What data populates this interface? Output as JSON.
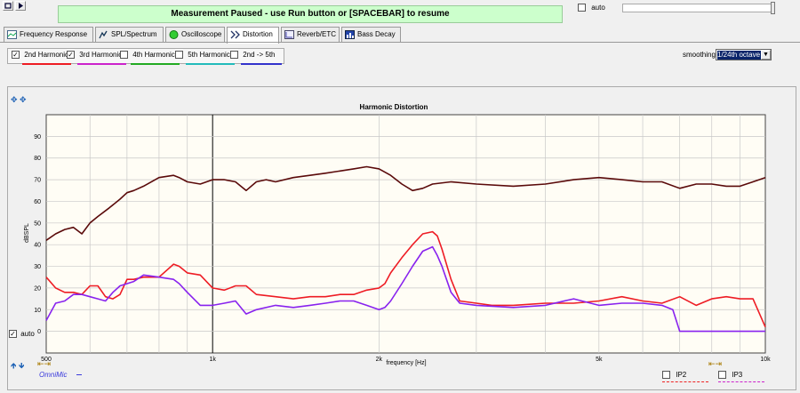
{
  "status": {
    "message": "Measurement Paused - use Run button or [SPACEBAR] to resume"
  },
  "top_auto": {
    "label": "auto",
    "checked": false
  },
  "tabs": [
    {
      "label": "Frequency Response",
      "active": false,
      "icon": "frequency-response-icon"
    },
    {
      "label": "SPL/Spectrum",
      "active": false,
      "icon": "spl-spectrum-icon"
    },
    {
      "label": "Oscilloscope",
      "active": false,
      "icon": "oscilloscope-icon"
    },
    {
      "label": "Distortion",
      "active": true,
      "icon": "distortion-icon"
    },
    {
      "label": "Reverb/ETC",
      "active": false,
      "icon": "reverb-icon"
    },
    {
      "label": "Bass Decay",
      "active": false,
      "icon": "bass-decay-icon"
    }
  ],
  "harmonics": [
    {
      "label": "2nd Harmonic",
      "checked": true,
      "color": "#ee1c24"
    },
    {
      "label": "3rd Harmonic",
      "checked": true,
      "color": "#cc22cc"
    },
    {
      "label": "4th Harmonic",
      "checked": false,
      "color": "#22aa22"
    },
    {
      "label": "5th Harmonic",
      "checked": false,
      "color": "#22bbbb"
    },
    {
      "label": "2nd -> 5th",
      "checked": false,
      "color": "#3333cc"
    }
  ],
  "smoothing": {
    "label": "smoothing",
    "value": "1/24th octave"
  },
  "y_auto": {
    "label": "auto",
    "checked": true
  },
  "legend": {
    "mic_name": "OmniMic",
    "ip2_label": "IP2",
    "ip3_label": "IP3"
  },
  "chart_data": {
    "type": "line",
    "title": "Harmonic Distortion",
    "xlabel": "frequency [Hz]",
    "ylabel": "dBSPL",
    "x_scale": "log",
    "xlim": [
      500,
      10000
    ],
    "ylim": [
      -10,
      100
    ],
    "x_tick_labels": [
      {
        "value": 500,
        "label": "500"
      },
      {
        "value": 1000,
        "label": "1k"
      },
      {
        "value": 2000,
        "label": "2k"
      },
      {
        "value": 5000,
        "label": "5k"
      },
      {
        "value": 10000,
        "label": "10k"
      }
    ],
    "y_ticks": [
      0,
      10,
      20,
      30,
      40,
      50,
      60,
      70,
      80,
      90
    ],
    "grid": true,
    "series": [
      {
        "name": "",
        "color": "#5a0a0a",
        "x": [
          500,
          520,
          540,
          560,
          580,
          600,
          620,
          650,
          680,
          700,
          720,
          750,
          800,
          850,
          870,
          900,
          950,
          1000,
          1050,
          1100,
          1150,
          1200,
          1250,
          1300,
          1400,
          1500,
          1600,
          1700,
          1800,
          1900,
          2000,
          2100,
          2200,
          2300,
          2400,
          2500,
          2700,
          3000,
          3500,
          4000,
          4500,
          5000,
          5500,
          6000,
          6500,
          7000,
          7500,
          8000,
          8500,
          9000,
          9500,
          10000
        ],
        "y": [
          42,
          45,
          47,
          48,
          45,
          50,
          53,
          57,
          61,
          64,
          65,
          67,
          71,
          72,
          71,
          69,
          68,
          70,
          70,
          69,
          65,
          69,
          70,
          69,
          71,
          72,
          73,
          74,
          75,
          76,
          75,
          72,
          68,
          65,
          66,
          68,
          69,
          68,
          67,
          68,
          70,
          71,
          70,
          69,
          69,
          66,
          68,
          68,
          67,
          67,
          69,
          71
        ]
      },
      {
        "name": "2nd Harmonic",
        "color": "#ee1c24",
        "x": [
          500,
          520,
          540,
          560,
          580,
          600,
          620,
          640,
          660,
          680,
          700,
          720,
          750,
          800,
          850,
          870,
          900,
          950,
          1000,
          1050,
          1100,
          1150,
          1200,
          1300,
          1400,
          1500,
          1600,
          1700,
          1800,
          1900,
          2000,
          2050,
          2100,
          2200,
          2300,
          2400,
          2500,
          2550,
          2600,
          2700,
          2800,
          3000,
          3200,
          3500,
          4000,
          4500,
          5000,
          5500,
          6000,
          6500,
          7000,
          7500,
          8000,
          8500,
          9000,
          9500,
          10000
        ],
        "y": [
          25,
          20,
          18,
          18,
          17,
          21,
          21,
          16,
          15,
          17,
          24,
          24,
          25,
          25,
          31,
          30,
          27,
          26,
          20,
          19,
          21,
          21,
          17,
          16,
          15,
          16,
          16,
          17,
          17,
          19,
          20,
          22,
          27,
          34,
          40,
          45,
          46,
          44,
          38,
          24,
          14,
          13,
          12,
          12,
          13,
          13,
          14,
          16,
          14,
          13,
          16,
          12,
          15,
          16,
          15,
          15,
          2
        ]
      },
      {
        "name": "3rd Harmonic",
        "color": "#8822ee",
        "x": [
          500,
          520,
          540,
          560,
          580,
          600,
          620,
          640,
          660,
          680,
          700,
          720,
          750,
          800,
          850,
          870,
          900,
          950,
          1000,
          1050,
          1100,
          1150,
          1200,
          1300,
          1400,
          1500,
          1600,
          1700,
          1800,
          1900,
          2000,
          2050,
          2100,
          2200,
          2300,
          2400,
          2500,
          2550,
          2600,
          2700,
          2800,
          3000,
          3500,
          4000,
          4500,
          5000,
          5500,
          6000,
          6500,
          6800,
          7000,
          7500,
          8000,
          9000,
          10000
        ],
        "y": [
          5,
          13,
          14,
          17,
          17,
          16,
          15,
          14,
          18,
          21,
          22,
          23,
          26,
          25,
          24,
          22,
          18,
          12,
          12,
          13,
          14,
          8,
          10,
          12,
          11,
          12,
          13,
          14,
          14,
          12,
          10,
          11,
          14,
          22,
          30,
          37,
          39,
          35,
          30,
          18,
          13,
          12,
          11,
          12,
          15,
          12,
          13,
          13,
          12,
          10,
          0,
          0,
          0,
          0,
          0
        ]
      }
    ]
  }
}
